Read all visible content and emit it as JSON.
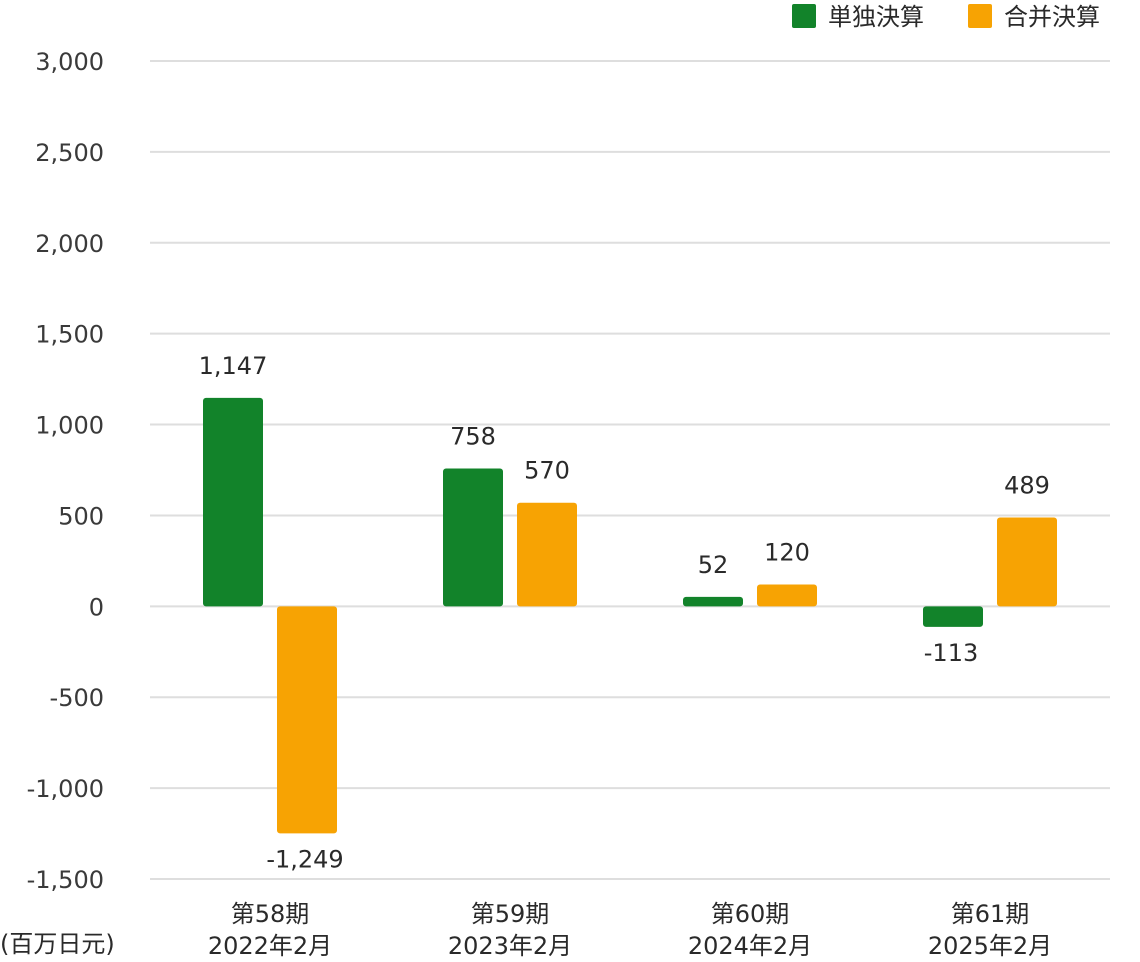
{
  "chart_data": {
    "type": "bar",
    "categories": [
      [
        "第58期",
        "2022年2月"
      ],
      [
        "第59期",
        "2023年2月"
      ],
      [
        "第60期",
        "2024年2月"
      ],
      [
        "第61期",
        "2025年2月"
      ]
    ],
    "series": [
      {
        "name": "単独決算",
        "color": "#12832a",
        "values": [
          1147,
          758,
          52,
          -113
        ],
        "labels": [
          "1,147",
          "758",
          "52",
          "-113"
        ]
      },
      {
        "name": "合并決算",
        "color": "#f7a303",
        "values": [
          -1249,
          570,
          120,
          489
        ],
        "labels": [
          "-1,249",
          "570",
          "120",
          "489"
        ]
      }
    ],
    "ylim": [
      -1500,
      3000
    ],
    "yticks": [
      3000,
      2500,
      2000,
      1500,
      1000,
      500,
      0,
      -500,
      -1000,
      -1500
    ],
    "ytick_labels": [
      "3,000",
      "2,500",
      "2,000",
      "1,500",
      "1,000",
      "500",
      "0",
      "-500",
      "-1,000",
      "-1,500"
    ],
    "unit_label": "(百万日元)",
    "grid": true,
    "legend_position": "top-right"
  }
}
